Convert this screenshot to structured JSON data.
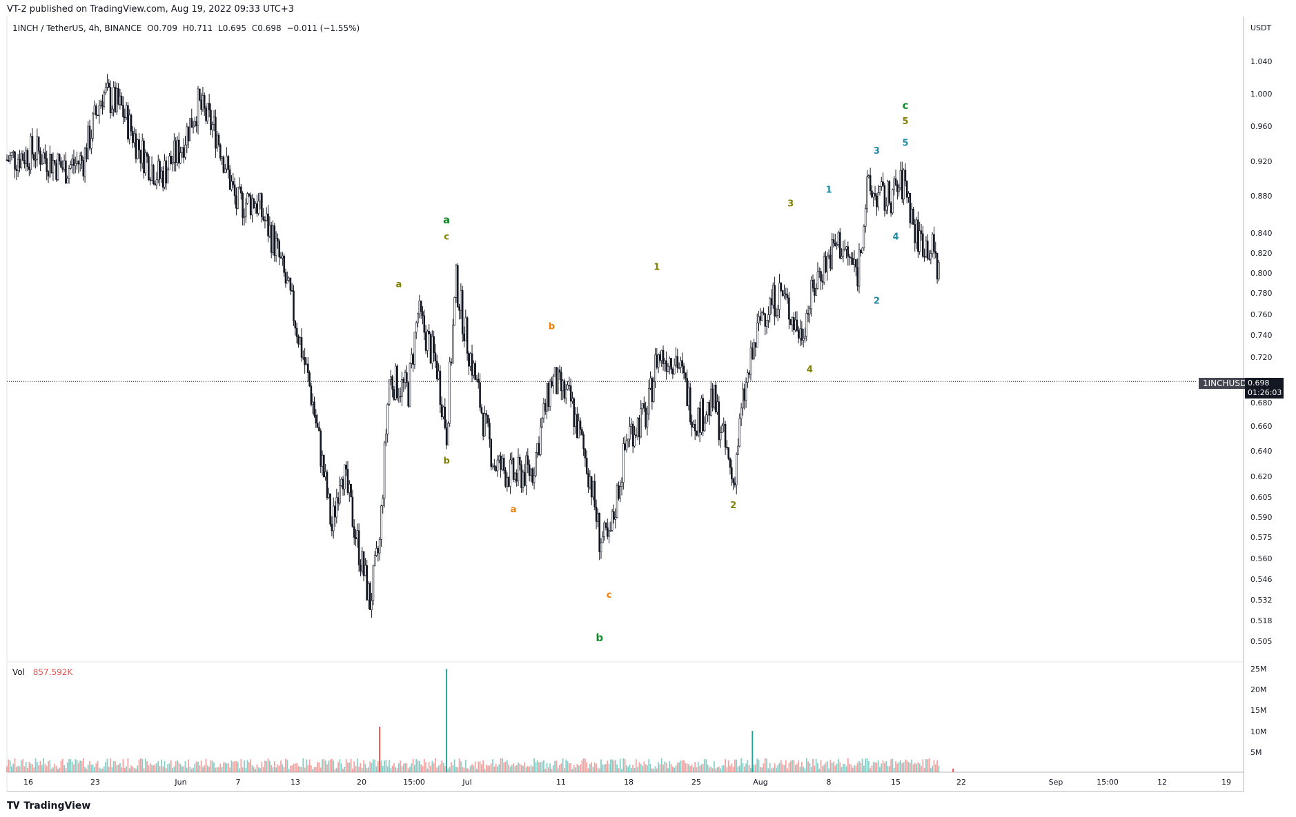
{
  "header": {
    "published": "VT-2 published on TradingView.com, Aug 19, 2022 09:33 UTC+3"
  },
  "symbol": {
    "name": "1INCH / TetherUS, 4h, BINANCE",
    "open": "O0.709",
    "high": "H0.711",
    "low": "L0.695",
    "close": "C0.698",
    "change": "−0.011 (−1.55%)"
  },
  "volume_panel": {
    "label": "Vol",
    "value": "857.592K"
  },
  "price_scale": {
    "currency": "USDT",
    "current_ticker": "1INCHUSDT",
    "current_price": "0.698",
    "countdown": "01:26:03"
  },
  "footer": {
    "brand": "TradingView"
  },
  "colors": {
    "candle": "#131722",
    "volume_up": "#26a69a",
    "volume_down": "#ef5350",
    "wave_green": "#138a2a",
    "wave_olive": "#808000",
    "wave_orange": "#f57c00",
    "wave_teal": "#1e8ba5"
  },
  "chart_data": [
    {
      "type": "candlestick",
      "scale": "log",
      "x_tick_labels": [
        "16",
        "23",
        "Jun",
        "7",
        "13",
        "20",
        "15:00",
        "Jul",
        "11",
        "18",
        "25",
        "Aug",
        "8",
        "15",
        "22",
        "Sep",
        "15:00",
        "12",
        "19"
      ],
      "y_tick_labels": [
        "1.040",
        "1.000",
        "0.960",
        "0.920",
        "0.880",
        "0.840",
        "0.820",
        "0.800",
        "0.780",
        "0.760",
        "0.740",
        "0.720",
        "0.680",
        "0.660",
        "0.640",
        "0.620",
        "0.605",
        "0.590",
        "0.575",
        "0.560",
        "0.546",
        "0.532",
        "0.518",
        "0.505"
      ],
      "ylim": [
        0.495,
        1.1
      ],
      "price_path": [
        {
          "date": "2022-05-12",
          "price": 0.92
        },
        {
          "date": "2022-05-15",
          "price": 0.93
        },
        {
          "date": "2022-05-18",
          "price": 0.91
        },
        {
          "date": "2022-05-20",
          "price": 0.92
        },
        {
          "date": "2022-05-22",
          "price": 1.0
        },
        {
          "date": "2022-05-24",
          "price": 0.98
        },
        {
          "date": "2022-05-26",
          "price": 0.93
        },
        {
          "date": "2022-05-28",
          "price": 0.9
        },
        {
          "date": "2022-05-30",
          "price": 0.93
        },
        {
          "date": "2022-06-01",
          "price": 0.985
        },
        {
          "date": "2022-06-03",
          "price": 0.95
        },
        {
          "date": "2022-06-05",
          "price": 0.87
        },
        {
          "date": "2022-06-07",
          "price": 0.875
        },
        {
          "date": "2022-06-09",
          "price": 0.83
        },
        {
          "date": "2022-06-11",
          "price": 0.76
        },
        {
          "date": "2022-06-13",
          "price": 0.68
        },
        {
          "date": "2022-06-14",
          "price": 0.63
        },
        {
          "date": "2022-06-15",
          "price": 0.58
        },
        {
          "date": "2022-06-16",
          "price": 0.63
        },
        {
          "date": "2022-06-18",
          "price": 0.56
        },
        {
          "date": "2022-06-19",
          "price": 0.53
        },
        {
          "date": "2022-06-20",
          "price": 0.57
        },
        {
          "date": "2022-06-21",
          "price": 0.7
        },
        {
          "date": "2022-06-23",
          "price": 0.69
        },
        {
          "date": "2022-06-24",
          "price": 0.76
        },
        {
          "date": "2022-06-26",
          "price": 0.71
        },
        {
          "date": "2022-06-27",
          "price": 0.655
        },
        {
          "date": "2022-06-28",
          "price": 0.79
        },
        {
          "date": "2022-06-29",
          "price": 0.74
        },
        {
          "date": "2022-07-01",
          "price": 0.66
        },
        {
          "date": "2022-07-02",
          "price": 0.63
        },
        {
          "date": "2022-07-04",
          "price": 0.62
        },
        {
          "date": "2022-07-06",
          "price": 0.625
        },
        {
          "date": "2022-07-08",
          "price": 0.7
        },
        {
          "date": "2022-07-10",
          "price": 0.68
        },
        {
          "date": "2022-07-12",
          "price": 0.62
        },
        {
          "date": "2022-07-13",
          "price": 0.575
        },
        {
          "date": "2022-07-14",
          "price": 0.57
        },
        {
          "date": "2022-07-16",
          "price": 0.655
        },
        {
          "date": "2022-07-18",
          "price": 0.67
        },
        {
          "date": "2022-07-19",
          "price": 0.72
        },
        {
          "date": "2022-07-21",
          "price": 0.72
        },
        {
          "date": "2022-07-23",
          "price": 0.665
        },
        {
          "date": "2022-07-25",
          "price": 0.68
        },
        {
          "date": "2022-07-27",
          "price": 0.615
        },
        {
          "date": "2022-07-28",
          "price": 0.68
        },
        {
          "date": "2022-07-30",
          "price": 0.76
        },
        {
          "date": "2022-08-01",
          "price": 0.78
        },
        {
          "date": "2022-08-03",
          "price": 0.74
        },
        {
          "date": "2022-08-05",
          "price": 0.8
        },
        {
          "date": "2022-08-07",
          "price": 0.83
        },
        {
          "date": "2022-08-09",
          "price": 0.8
        },
        {
          "date": "2022-08-10",
          "price": 0.885
        },
        {
          "date": "2022-08-12",
          "price": 0.875
        },
        {
          "date": "2022-08-14",
          "price": 0.895
        },
        {
          "date": "2022-08-15",
          "price": 0.84
        },
        {
          "date": "2022-08-17",
          "price": 0.82
        },
        {
          "date": "2022-08-18",
          "price": 0.775
        },
        {
          "date": "2022-08-19",
          "price": 0.698
        }
      ],
      "last_price": 0.698,
      "volume_tick_labels": [
        "25M",
        "20M",
        "15M",
        "10M",
        "5M"
      ],
      "volume_ylim": [
        0,
        25000000
      ],
      "volume_spikes": [
        {
          "date": "2022-06-20",
          "volume": 11000000,
          "direction": "down"
        },
        {
          "date": "2022-06-27",
          "volume": 25000000,
          "direction": "up"
        },
        {
          "date": "2022-07-29",
          "volume": 10000000,
          "direction": "up"
        },
        {
          "date": "2022-08-19",
          "volume": 857592,
          "direction": "down"
        }
      ],
      "annotations": [
        {
          "text": "a",
          "date": "2022-06-27",
          "price": 0.85,
          "color": "wave_green"
        },
        {
          "text": "b",
          "date": "2022-07-13",
          "price": 0.505,
          "color": "wave_green"
        },
        {
          "text": "c",
          "date": "2022-08-14",
          "price": 0.98,
          "color": "wave_green"
        },
        {
          "text": "a",
          "date": "2022-06-22",
          "price": 0.785,
          "color": "wave_olive"
        },
        {
          "text": "b",
          "date": "2022-06-27",
          "price": 0.63,
          "color": "wave_olive"
        },
        {
          "text": "c",
          "date": "2022-06-27",
          "price": 0.833,
          "color": "wave_olive"
        },
        {
          "text": "1",
          "date": "2022-07-19",
          "price": 0.802,
          "color": "wave_olive"
        },
        {
          "text": "2",
          "date": "2022-07-27",
          "price": 0.596,
          "color": "wave_olive"
        },
        {
          "text": "3",
          "date": "2022-08-02",
          "price": 0.868,
          "color": "wave_olive"
        },
        {
          "text": "4",
          "date": "2022-08-04",
          "price": 0.706,
          "color": "wave_olive"
        },
        {
          "text": "5",
          "date": "2022-08-14",
          "price": 0.962,
          "color": "wave_olive"
        },
        {
          "text": "a",
          "date": "2022-07-04",
          "price": 0.593,
          "color": "wave_orange"
        },
        {
          "text": "b",
          "date": "2022-07-08",
          "price": 0.745,
          "color": "wave_orange"
        },
        {
          "text": "c",
          "date": "2022-07-14",
          "price": 0.533,
          "color": "wave_orange"
        },
        {
          "text": "1",
          "date": "2022-08-06",
          "price": 0.883,
          "color": "wave_teal"
        },
        {
          "text": "2",
          "date": "2022-08-11",
          "price": 0.769,
          "color": "wave_teal"
        },
        {
          "text": "3",
          "date": "2022-08-11",
          "price": 0.927,
          "color": "wave_teal"
        },
        {
          "text": "4",
          "date": "2022-08-13",
          "price": 0.833,
          "color": "wave_teal"
        },
        {
          "text": "5",
          "date": "2022-08-14",
          "price": 0.936,
          "color": "wave_teal"
        }
      ]
    }
  ]
}
